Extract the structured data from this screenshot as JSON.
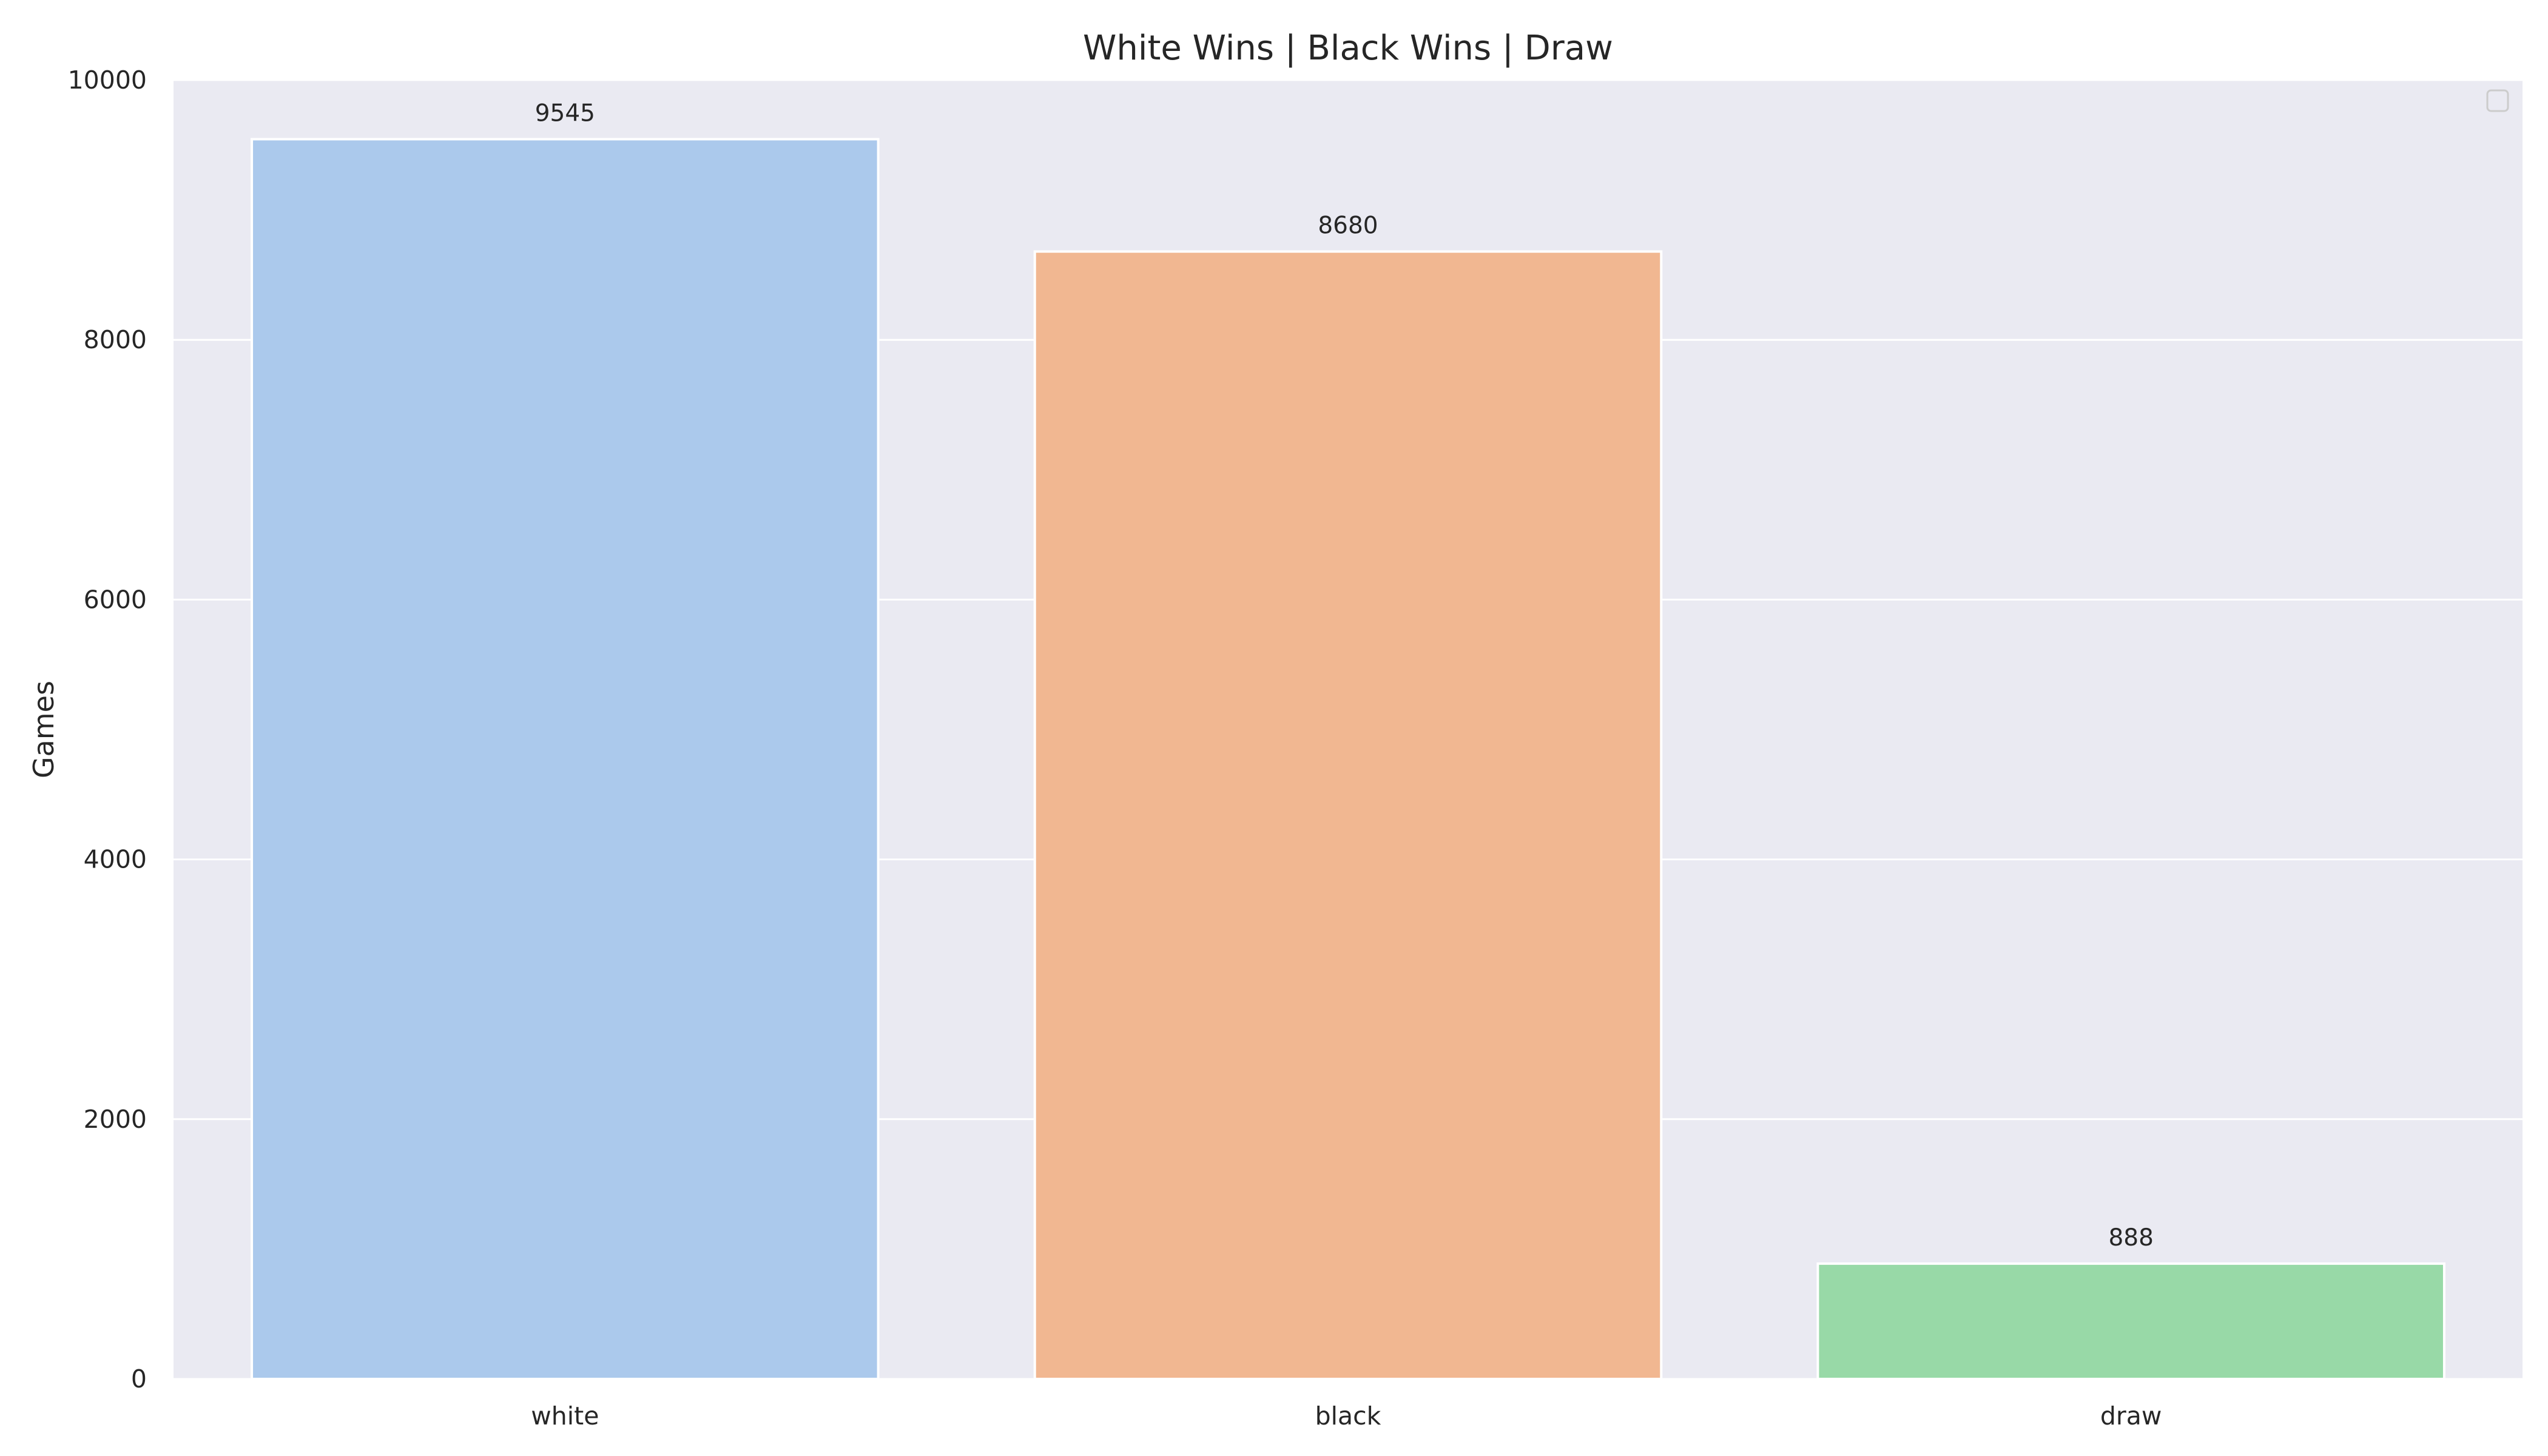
{
  "chart_data": {
    "type": "bar",
    "title": "White Wins | Black Wins | Draw",
    "xlabel": "",
    "ylabel": "Games",
    "categories": [
      "white",
      "black",
      "draw"
    ],
    "values": [
      9545,
      8680,
      888
    ],
    "data_labels": [
      "9545",
      "8680",
      "888"
    ],
    "colors": [
      "#abc9ec",
      "#f1b791",
      "#98d9a7"
    ],
    "ylim": [
      0,
      10000
    ],
    "yticks": [
      0,
      2000,
      4000,
      6000,
      8000,
      10000
    ],
    "ytick_labels": [
      "0",
      "2000",
      "4000",
      "6000",
      "8000",
      "10000"
    ],
    "grid": true,
    "legend": "top-right (empty)",
    "background_color": "#eaeaf2"
  }
}
